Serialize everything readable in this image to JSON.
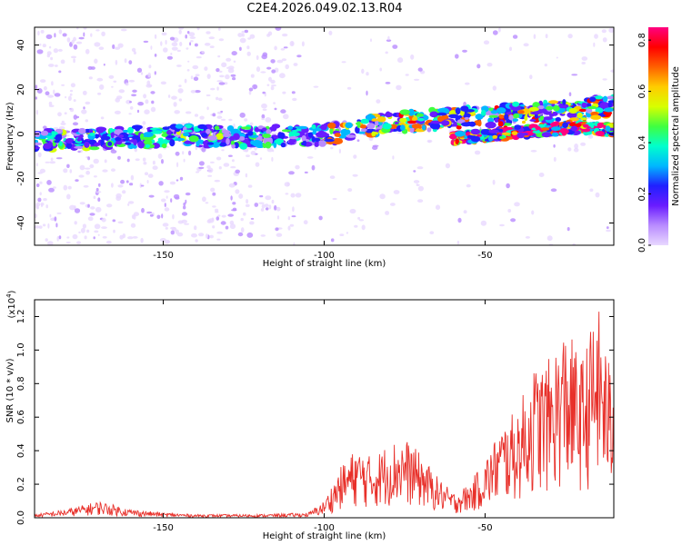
{
  "title": "C2E4.2026.049.02.13.R04",
  "chart_data": [
    {
      "type": "heatmap",
      "name": "spectrogram",
      "xlabel": "Height of straight line (km)",
      "ylabel": "Frequency (Hz)",
      "xlim": [
        -190,
        -10
      ],
      "ylim": [
        -50,
        48
      ],
      "xticks": [
        -150,
        -100,
        -50
      ],
      "yticks": [
        -40,
        -20,
        0,
        20,
        40
      ],
      "colorbar": {
        "label": "Normalized spectral amplitude",
        "range": [
          0.0,
          0.85
        ],
        "ticks": [
          0.0,
          0.2,
          0.4,
          0.6,
          0.8
        ],
        "colors": [
          "#e8d8ff",
          "#b98cff",
          "#6a1cff",
          "#2020ff",
          "#00b8ff",
          "#00ffcc",
          "#40ff40",
          "#d8ff00",
          "#ffcc00",
          "#ff6000",
          "#ff0000",
          "#ff0080"
        ]
      },
      "ridge": {
        "description_free": true,
        "x": [
          -190,
          -150,
          -120,
          -100,
          -80,
          -60,
          -40,
          -20,
          -10
        ],
        "freq": [
          -3,
          -1,
          -1,
          0,
          5,
          7,
          9,
          11,
          13
        ]
      },
      "lower_ridge": {
        "x": [
          -60,
          -45,
          -30,
          -20,
          -10
        ],
        "freq": [
          -2,
          0,
          2,
          3,
          2
        ]
      }
    },
    {
      "type": "line",
      "name": "snr",
      "xlabel": "Height of straight line (km)",
      "ylabel": "SNR (10 * v/v)",
      "multiplier_label": "(x10",
      "multiplier_exp": "4",
      "multiplier_close": ")",
      "xlim": [
        -190,
        -10
      ],
      "ylim": [
        0,
        1.3
      ],
      "xticks": [
        -150,
        -100,
        -50
      ],
      "yticks": [
        0.0,
        0.2,
        0.4,
        0.6,
        0.8,
        1.0,
        1.2
      ],
      "ytick_labels": [
        "0.0",
        "0.2",
        "0.4",
        "0.6",
        "0.8",
        "1.0",
        "1.2"
      ],
      "color": "#e8302a",
      "envelope": {
        "x": [
          -190,
          -180,
          -170,
          -160,
          -150,
          -140,
          -120,
          -105,
          -100,
          -95,
          -90,
          -85,
          -80,
          -75,
          -70,
          -65,
          -60,
          -55,
          -50,
          -45,
          -40,
          -35,
          -30,
          -25,
          -20,
          -15,
          -10
        ],
        "y": [
          0.02,
          0.05,
          0.1,
          0.05,
          0.03,
          0.02,
          0.02,
          0.03,
          0.1,
          0.3,
          0.42,
          0.36,
          0.45,
          0.48,
          0.38,
          0.25,
          0.15,
          0.2,
          0.35,
          0.55,
          0.65,
          0.9,
          0.95,
          1.15,
          0.95,
          1.28,
          0.8
        ]
      }
    }
  ]
}
